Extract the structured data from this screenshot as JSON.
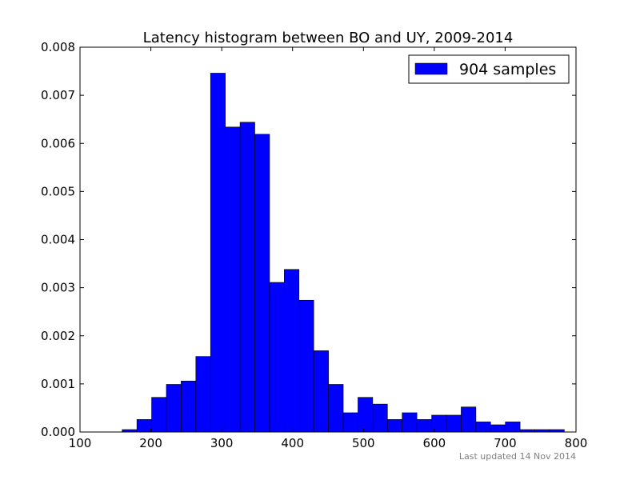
{
  "chart_data": {
    "type": "bar",
    "title": "Latency histogram between BO and UY, 2009-2014",
    "xlabel": "",
    "ylabel": "",
    "xlim": [
      100,
      800
    ],
    "ylim": [
      0,
      0.008
    ],
    "x_ticks": [
      100,
      200,
      300,
      400,
      500,
      600,
      700,
      800
    ],
    "x_tick_labels": [
      "100",
      "200",
      "300",
      "400",
      "500",
      "600",
      "700",
      "800"
    ],
    "y_ticks": [
      0,
      0.001,
      0.002,
      0.003,
      0.004,
      0.005,
      0.006,
      0.007,
      0.008
    ],
    "y_tick_labels": [
      "0.000",
      "0.001",
      "0.002",
      "0.003",
      "0.004",
      "0.005",
      "0.006",
      "0.007",
      "0.008"
    ],
    "grid": false,
    "legend_position": "top-right",
    "series": [
      {
        "name": "904 samples",
        "color": "#0000ff",
        "bins": [
          [
            159.5,
            180.3,
            5e-05
          ],
          [
            180.3,
            201.1,
            0.00026
          ],
          [
            201.1,
            221.9,
            0.00072
          ],
          [
            221.9,
            242.7,
            0.00099
          ],
          [
            242.7,
            263.5,
            0.00106
          ],
          [
            263.5,
            284.3,
            0.00157
          ],
          [
            284.3,
            305.1,
            0.00746
          ],
          [
            305.1,
            325.9,
            0.00634
          ],
          [
            325.9,
            346.7,
            0.00644
          ],
          [
            346.7,
            367.5,
            0.00619
          ],
          [
            367.5,
            388.3,
            0.00311
          ],
          [
            388.3,
            409.1,
            0.00338
          ],
          [
            409.1,
            429.9,
            0.00274
          ],
          [
            429.9,
            450.7,
            0.00169
          ],
          [
            450.7,
            471.5,
            0.00099
          ],
          [
            471.5,
            492.3,
            0.0004
          ],
          [
            492.3,
            513.1,
            0.00072
          ],
          [
            513.1,
            533.9,
            0.00058
          ],
          [
            533.9,
            554.7,
            0.00026
          ],
          [
            554.7,
            575.5,
            0.0004
          ],
          [
            575.5,
            596.3,
            0.00026
          ],
          [
            596.3,
            617.1,
            0.00035
          ],
          [
            617.1,
            637.9,
            0.00035
          ],
          [
            637.9,
            658.7,
            0.00052
          ],
          [
            658.7,
            679.5,
            0.00021
          ],
          [
            679.5,
            700.3,
            0.00015
          ],
          [
            700.3,
            721.1,
            0.00021
          ],
          [
            721.1,
            741.9,
            5e-05
          ],
          [
            741.9,
            762.7,
            5e-05
          ],
          [
            762.7,
            783.5,
            5e-05
          ]
        ]
      }
    ]
  },
  "footer": {
    "note": "Last updated 14 Nov 2014"
  }
}
